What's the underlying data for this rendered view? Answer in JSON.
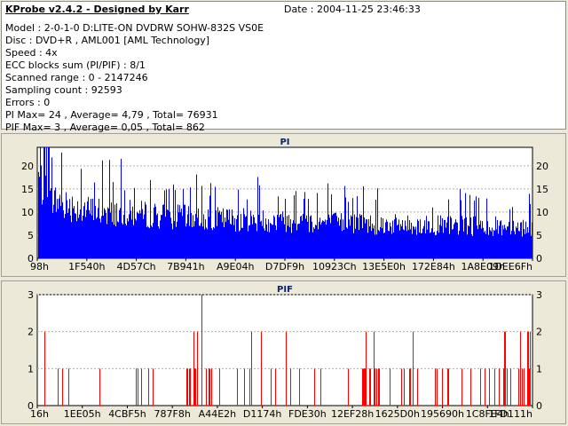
{
  "info": {
    "title": "KProbe v2.4.2 - Designed by Karr",
    "date": "Date : 2004-11-25 23:46:33",
    "lines": [
      "Model : 2-0-1-0 D:LITE-ON DVDRW SOHW-832S  VS0E",
      "Disc : DVD+R , AML001 [AML Technology]",
      "Speed : 4x",
      "ECC blocks sum (PI/PIF) : 8/1",
      "Scanned range : 0 - 2147246",
      "Sampling count : 92593",
      "Errors : 0",
      "PI Max= 24 , Average= 4,79 , Total= 76931",
      "PIF Max= 3 , Average= 0,05 , Total= 862"
    ]
  },
  "chart_data": [
    {
      "type": "area",
      "title": "PI",
      "color": "#0000ff",
      "ylim": [
        0,
        24
      ],
      "yticks": [
        "0",
        "5",
        "10",
        "15",
        "20"
      ],
      "xlabels": [
        "98h",
        "1F540h",
        "4D57Ch",
        "7B941h",
        "A9E04h",
        "D7DF9h",
        "10923Ch",
        "13E5E0h",
        "172E84h",
        "1A8E09h",
        "1DEE6Fh"
      ],
      "profile": [
        [
          0,
          22
        ],
        [
          0.02,
          16
        ],
        [
          0.1,
          13
        ],
        [
          0.3,
          11
        ],
        [
          0.5,
          10
        ],
        [
          0.75,
          9
        ],
        [
          1,
          8.5
        ]
      ],
      "max": 24,
      "grid": true
    },
    {
      "type": "bar",
      "title": "PIF",
      "color": "#ff0000",
      "ylim": [
        0,
        3
      ],
      "yticks": [
        "0",
        "1",
        "2",
        "3"
      ],
      "xlabels": [
        "16h",
        "1EE05h",
        "4CBF5h",
        "787F8h",
        "A44E2h",
        "D1174h",
        "FDE30h",
        "12EF28h",
        "1625D0h",
        "195690h",
        "1C8FE4h",
        "1FD111h"
      ],
      "max": 3,
      "grid": true
    }
  ]
}
